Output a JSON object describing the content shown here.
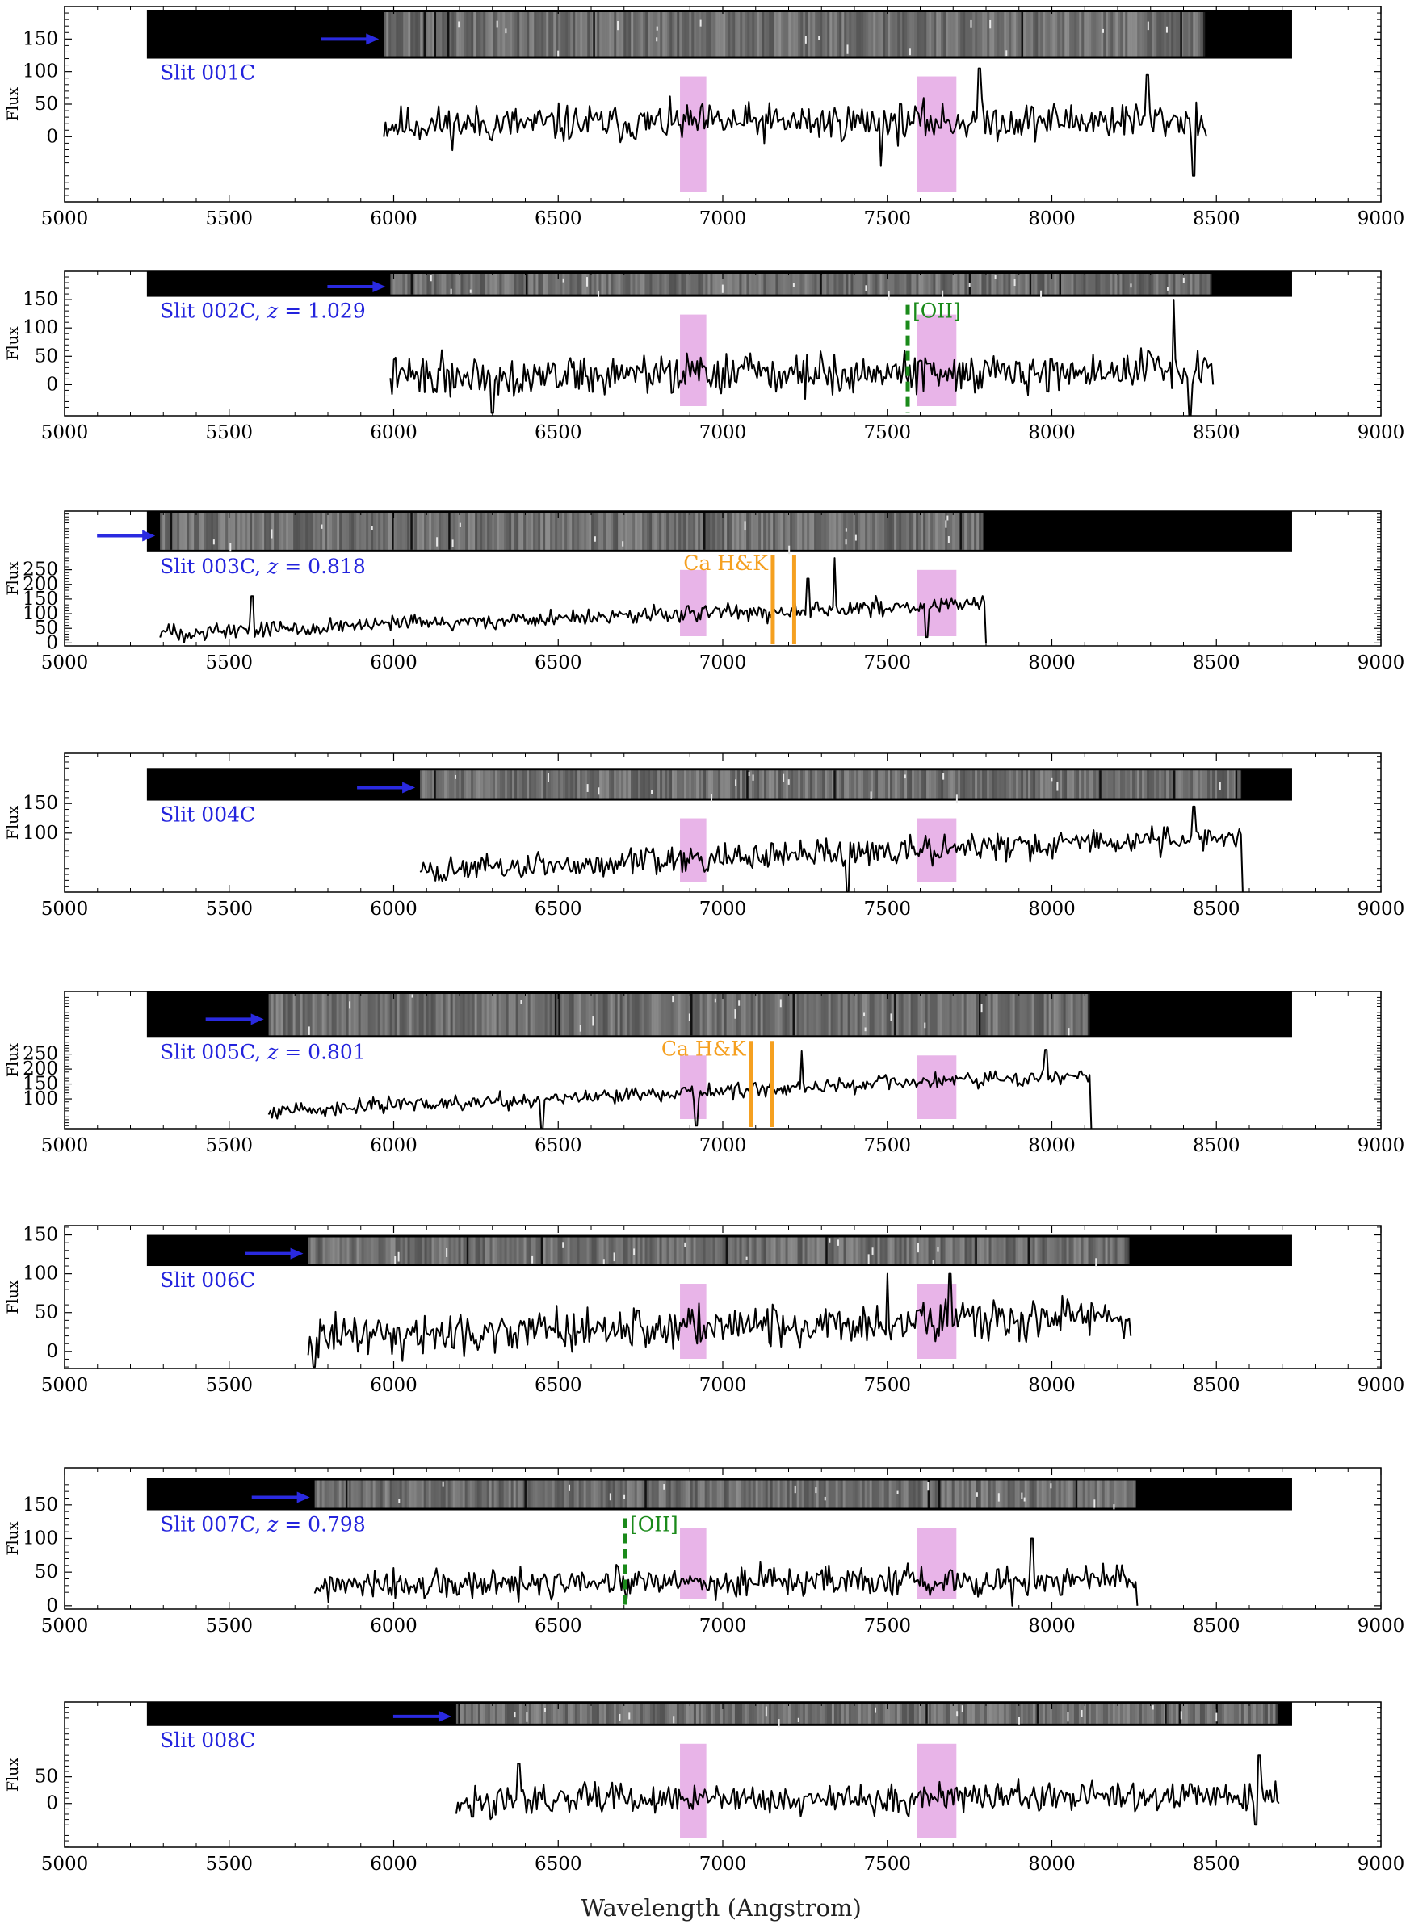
{
  "colors": {
    "telluric_band": "#e8b4e8",
    "arrow": "#2a2ae0",
    "oii_line": "#1a8a1a",
    "cahk_line": "#f5a020",
    "spectrum": "#000000",
    "label": "#2323dd"
  },
  "x_axis": {
    "label": "Wavelength (Angstrom)",
    "ticks": [
      "5000",
      "5500",
      "6000",
      "6500",
      "7000",
      "7500",
      "8000",
      "8500",
      "9000"
    ]
  },
  "chart_data": [
    {
      "type": "line",
      "slit": "Slit 001C",
      "ylabel": "Flux",
      "xlim": [
        5000,
        9000
      ],
      "ylim": [
        -100,
        200
      ],
      "yticks": [
        "0",
        "50",
        "100",
        "150"
      ],
      "image_strip": {
        "wl_start": 5250,
        "wl_end": 8730,
        "data_start": 5970,
        "data_end": 8460,
        "flux_lo": 120,
        "flux_hi": 195
      },
      "series": [
        {
          "wl_start": 5970,
          "wl_end": 8470,
          "baseline": 18,
          "noise": 18,
          "slope": 8,
          "spikes": [
            [
              7780,
              105
            ],
            [
              8290,
              95
            ],
            [
              8430,
              -60
            ],
            [
              7480,
              -45
            ]
          ],
          "end_value": 0
        }
      ],
      "telluric_bands": [
        [
          6870,
          6950
        ],
        [
          7590,
          7710
        ]
      ],
      "emission_lines": [],
      "absorption_lines": [],
      "seed": 11
    },
    {
      "type": "line",
      "slit": "Slit 002C",
      "redshift": "1.029",
      "ylabel": "Flux",
      "xlim": [
        5000,
        9000
      ],
      "ylim": [
        -55,
        200
      ],
      "yticks": [
        "0",
        "50",
        "100",
        "150"
      ],
      "image_strip": {
        "wl_start": 5250,
        "wl_end": 8730,
        "data_start": 5990,
        "data_end": 8480,
        "flux_lo": 155,
        "flux_hi": 200
      },
      "series": [
        {
          "wl_start": 5990,
          "wl_end": 8490,
          "baseline": 15,
          "noise": 22,
          "slope": 10,
          "spikes": [
            [
              8420,
              -55
            ],
            [
              8370,
              150
            ],
            [
              6300,
              -50
            ]
          ],
          "end_value": 0
        }
      ],
      "telluric_bands": [
        [
          6870,
          6950
        ],
        [
          7590,
          7710
        ]
      ],
      "emission_lines": [
        {
          "name": "[OII]",
          "wavelength": 7562
        }
      ],
      "absorption_lines": [],
      "seed": 22
    },
    {
      "type": "line",
      "slit": "Slit 003C",
      "redshift": "0.818",
      "ylabel": "Flux",
      "xlim": [
        5000,
        9000
      ],
      "ylim": [
        -10,
        450
      ],
      "yticks": [
        "0",
        "50",
        "100",
        "150",
        "200",
        "250"
      ],
      "image_strip": {
        "wl_start": 5250,
        "wl_end": 8730,
        "data_start": 5290,
        "data_end": 7790,
        "flux_lo": 310,
        "flux_hi": 450
      },
      "series": [
        {
          "wl_start": 5290,
          "wl_end": 7800,
          "baseline": 35,
          "noise": 18,
          "slope": 100,
          "spikes": [
            [
              5570,
              160
            ],
            [
              7340,
              290
            ],
            [
              7260,
              220
            ],
            [
              7620,
              20
            ]
          ],
          "end_value": 0
        }
      ],
      "telluric_bands": [
        [
          6870,
          6950
        ],
        [
          7590,
          7710
        ]
      ],
      "emission_lines": [],
      "absorption_lines": [
        {
          "name": "Ca H&K",
          "wavelengths": [
            7152,
            7217
          ]
        }
      ],
      "seed": 33
    },
    {
      "type": "line",
      "slit": "Slit 004C",
      "ylabel": "Flux",
      "xlim": [
        5000,
        9000
      ],
      "ylim": [
        0,
        235
      ],
      "yticks": [
        "100",
        "150"
      ],
      "image_strip": {
        "wl_start": 5250,
        "wl_end": 8730,
        "data_start": 6080,
        "data_end": 8570,
        "flux_lo": 155,
        "flux_hi": 210
      },
      "series": [
        {
          "wl_start": 6080,
          "wl_end": 8580,
          "baseline": 35,
          "noise": 14,
          "slope": 60,
          "spikes": [
            [
              8430,
              145
            ],
            [
              7380,
              0
            ]
          ],
          "end_value": 0
        }
      ],
      "telluric_bands": [
        [
          6870,
          6950
        ],
        [
          7590,
          7710
        ]
      ],
      "emission_lines": [],
      "absorption_lines": [],
      "seed": 44
    },
    {
      "type": "line",
      "slit": "Slit 005C",
      "redshift": "0.801",
      "ylabel": "Flux",
      "xlim": [
        5000,
        9000
      ],
      "ylim": [
        0,
        460
      ],
      "yticks": [
        "100",
        "150",
        "200",
        "250"
      ],
      "image_strip": {
        "wl_start": 5250,
        "wl_end": 8730,
        "data_start": 5620,
        "data_end": 8110,
        "flux_lo": 305,
        "flux_hi": 460
      },
      "series": [
        {
          "wl_start": 5620,
          "wl_end": 8120,
          "baseline": 60,
          "noise": 16,
          "slope": 120,
          "spikes": [
            [
              7240,
              260
            ],
            [
              7980,
              265
            ],
            [
              6450,
              0
            ],
            [
              6920,
              10
            ]
          ],
          "end_value": 0
        }
      ],
      "telluric_bands": [
        [
          6870,
          6950
        ],
        [
          7590,
          7710
        ]
      ],
      "emission_lines": [],
      "absorption_lines": [
        {
          "name": "Ca H&K",
          "wavelengths": [
            7085,
            7150
          ]
        }
      ],
      "seed": 55
    },
    {
      "type": "line",
      "slit": "Slit 006C",
      "ylabel": "Flux",
      "xlim": [
        5000,
        9000
      ],
      "ylim": [
        -22,
        162
      ],
      "yticks": [
        "0",
        "50",
        "100",
        "150"
      ],
      "image_strip": {
        "wl_start": 5250,
        "wl_end": 8730,
        "data_start": 5740,
        "data_end": 8230,
        "flux_lo": 110,
        "flux_hi": 150
      },
      "series": [
        {
          "wl_start": 5740,
          "wl_end": 8240,
          "baseline": 20,
          "noise": 16,
          "slope": 25,
          "spikes": [
            [
              7500,
              100
            ],
            [
              7690,
              100
            ],
            [
              5760,
              -20
            ]
          ],
          "end_value": 20
        }
      ],
      "telluric_bands": [
        [
          6870,
          6950
        ],
        [
          7590,
          7710
        ]
      ],
      "emission_lines": [],
      "absorption_lines": [],
      "seed": 66
    },
    {
      "type": "line",
      "slit": "Slit 007C",
      "redshift": "0.798",
      "ylabel": "Flux",
      "xlim": [
        5000,
        9000
      ],
      "ylim": [
        -5,
        205
      ],
      "yticks": [
        "0",
        "50",
        "100",
        "150"
      ],
      "image_strip": {
        "wl_start": 5250,
        "wl_end": 8730,
        "data_start": 5760,
        "data_end": 8250,
        "flux_lo": 142,
        "flux_hi": 190
      },
      "series": [
        {
          "wl_start": 5760,
          "wl_end": 8260,
          "baseline": 28,
          "noise": 14,
          "slope": 12,
          "spikes": [
            [
              7940,
              100
            ],
            [
              7880,
              0
            ]
          ],
          "end_value": 0
        }
      ],
      "telluric_bands": [
        [
          6870,
          6950
        ],
        [
          7590,
          7710
        ]
      ],
      "emission_lines": [
        {
          "name": "[OII]",
          "wavelength": 6703
        }
      ],
      "absorption_lines": [],
      "seed": 77
    },
    {
      "type": "line",
      "slit": "Slit 008C",
      "ylabel": "Flux",
      "xlim": [
        5000,
        9000
      ],
      "ylim": [
        -82,
        190
      ],
      "yticks": [
        "0",
        "50"
      ],
      "image_strip": {
        "wl_start": 5250,
        "wl_end": 8730,
        "data_start": 6190,
        "data_end": 8680,
        "flux_lo": 145,
        "flux_hi": 190
      },
      "series": [
        {
          "wl_start": 6190,
          "wl_end": 8690,
          "baseline": 5,
          "noise": 17,
          "slope": 8,
          "spikes": [
            [
              6380,
              75
            ],
            [
              8630,
              90
            ],
            [
              8620,
              -40
            ],
            [
              6240,
              -25
            ]
          ],
          "end_value": 0
        }
      ],
      "telluric_bands": [
        [
          6870,
          6950
        ],
        [
          7590,
          7710
        ]
      ],
      "emission_lines": [],
      "absorption_lines": [],
      "seed": 88
    }
  ]
}
